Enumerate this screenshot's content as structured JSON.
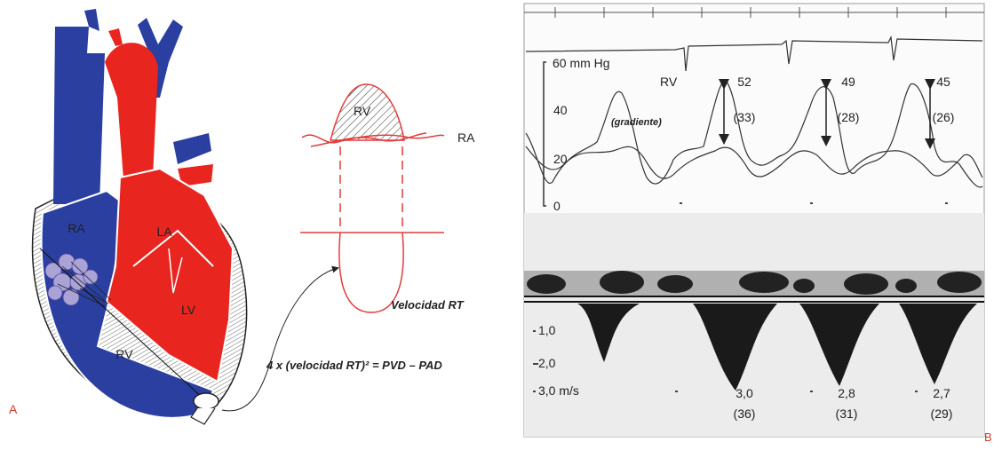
{
  "panel_a": {
    "label": "A",
    "heart_labels": [
      "RA",
      "LA",
      "LV",
      "RV"
    ],
    "waveform_labels": [
      "RV",
      "RA"
    ],
    "velocity_label": "Velocidad RT",
    "formula": "4 x (velocidad RT)² = PVD – PAD"
  },
  "panel_b": {
    "label": "B",
    "pressure_scale": [
      "60 mm Hg",
      "40",
      "20",
      "0"
    ],
    "rv_label": "RV",
    "gradient_label": "(gradiente)",
    "peaks": [
      {
        "pressure": "52",
        "gradient": "(33)"
      },
      {
        "pressure": "49",
        "gradient": "(28)"
      },
      {
        "pressure": "45",
        "gradient": "(26)"
      }
    ],
    "velocity_scale": [
      "1,0",
      "2,0",
      "3,0 m/s"
    ],
    "velocities": [
      {
        "velocity": "3,0",
        "gradient": "(36)"
      },
      {
        "velocity": "2,8",
        "gradient": "(31)"
      },
      {
        "velocity": "2,7",
        "gradient": "(29)"
      }
    ]
  }
}
